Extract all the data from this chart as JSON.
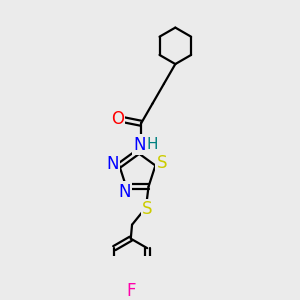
{
  "bg_color": "#ebebeb",
  "bond_color": "#000000",
  "bond_width": 1.6,
  "atom_colors": {
    "O": "#ff0000",
    "N": "#0000ff",
    "S": "#cccc00",
    "F": "#ff00aa",
    "H": "#008080",
    "C": "#000000"
  },
  "font_size": 11,
  "fig_size": [
    3.0,
    3.0
  ],
  "dpi": 100,
  "xlim": [
    0,
    10
  ],
  "ylim": [
    0,
    10
  ]
}
